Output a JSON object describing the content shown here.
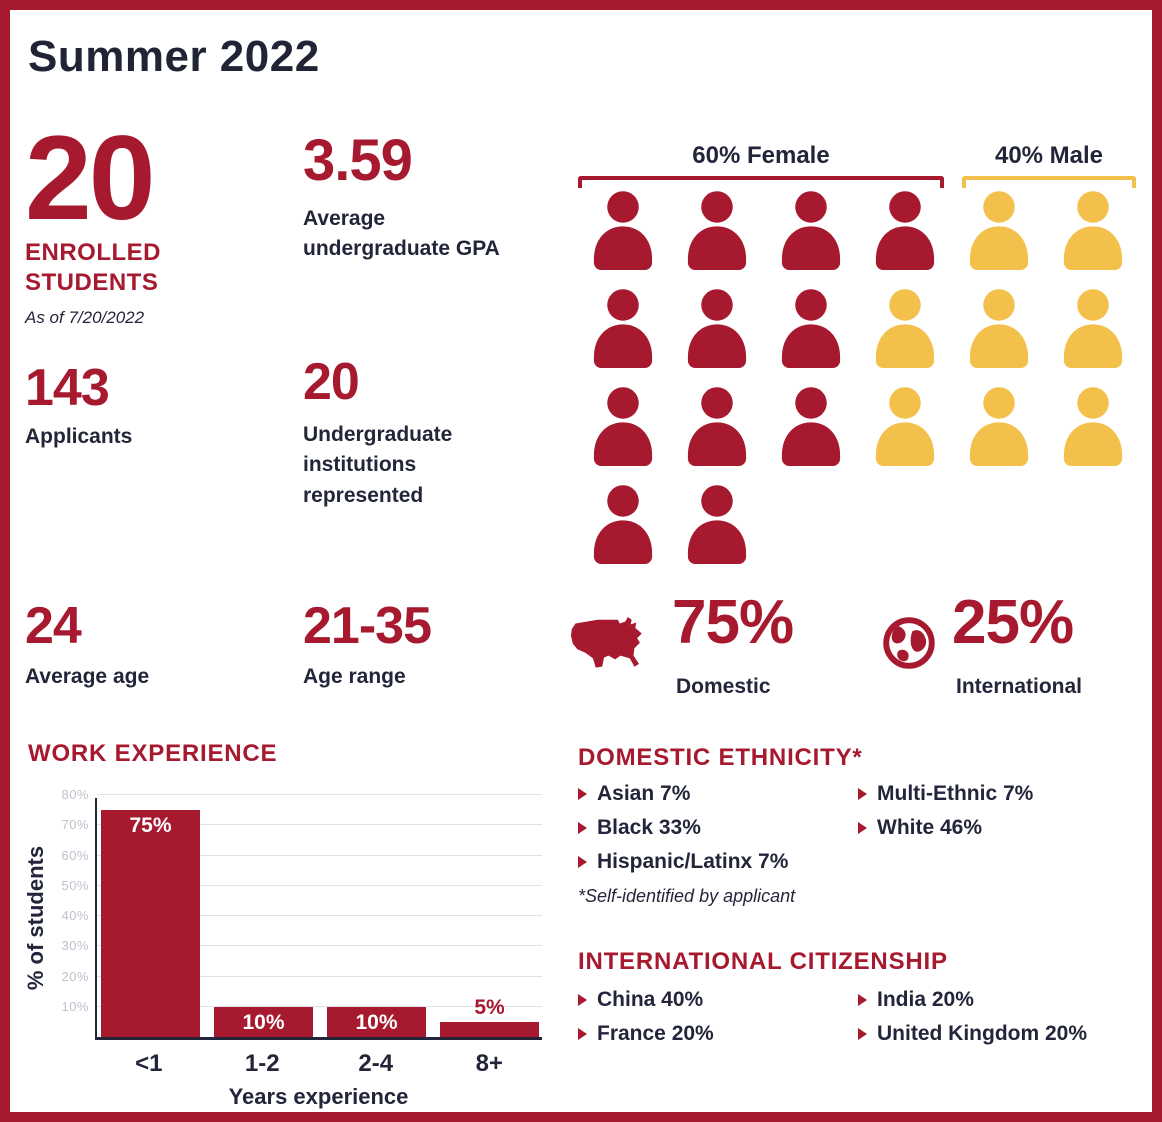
{
  "title": "Summer 2022",
  "colors": {
    "maroon": "#A6192E",
    "gold": "#F3C14B",
    "dark": "#23263A"
  },
  "stats": {
    "enrolled": {
      "value": "20",
      "label_line1": "ENROLLED",
      "label_line2": "STUDENTS",
      "as_of": "As of 7/20/2022"
    },
    "gpa": {
      "value": "3.59",
      "label": "Average undergraduate GPA"
    },
    "applicants": {
      "value": "143",
      "label": "Applicants"
    },
    "institutions": {
      "value": "20",
      "label": "Undergraduate institutions represented"
    },
    "average_age": {
      "value": "24",
      "label": "Average age"
    },
    "age_range": {
      "value": "21-35",
      "label": "Age range"
    },
    "domestic": {
      "value": "75%",
      "label": "Domestic"
    },
    "international": {
      "value": "25%",
      "label": "International"
    }
  },
  "gender": {
    "female_label": "60% Female",
    "male_label": "40% Male",
    "female_count": 12,
    "male_count": 8,
    "rows": [
      [
        "f",
        "f",
        "f",
        "f",
        "m",
        "m"
      ],
      [
        "f",
        "f",
        "f",
        "m",
        "m",
        "m"
      ],
      [
        "f",
        "f",
        "f",
        "m",
        "m",
        "m"
      ],
      [
        "f",
        "f"
      ]
    ]
  },
  "chart_data": [
    {
      "type": "bar",
      "title": "WORK EXPERIENCE",
      "categories": [
        "<1",
        "1-2",
        "2-4",
        "8+"
      ],
      "values": [
        75,
        10,
        10,
        5
      ],
      "value_labels": [
        "75%",
        "10%",
        "10%",
        "5%"
      ],
      "xlabel": "Years experience",
      "ylabel": "% of students",
      "ylim": [
        0,
        80
      ],
      "yticks": [
        10,
        20,
        30,
        40,
        50,
        60,
        70,
        80
      ],
      "ytick_labels": [
        "10%",
        "20%",
        "30%",
        "40%",
        "50%",
        "60%",
        "70%",
        "80%"
      ],
      "grid": true,
      "legend": "none",
      "bar_color": "#A6192E"
    },
    {
      "type": "pictograph",
      "title": "Gender split",
      "categories": [
        "Female",
        "Male"
      ],
      "values": [
        60,
        40
      ],
      "counts": [
        12,
        8
      ],
      "colors": [
        "#A6192E",
        "#F3C14B"
      ]
    }
  ],
  "ethnicity": {
    "heading": "DOMESTIC ETHNICITY*",
    "col1": [
      "Asian 7%",
      "Black 33%",
      "Hispanic/Latinx 7%"
    ],
    "col2": [
      "Multi-Ethnic 7%",
      "White 46%"
    ],
    "footnote": "*Self-identified by applicant"
  },
  "citizenship": {
    "heading": "INTERNATIONAL CITIZENSHIP",
    "col1": [
      "China 40%",
      "France 20%"
    ],
    "col2": [
      "India 20%",
      "United Kingdom 20%"
    ]
  }
}
